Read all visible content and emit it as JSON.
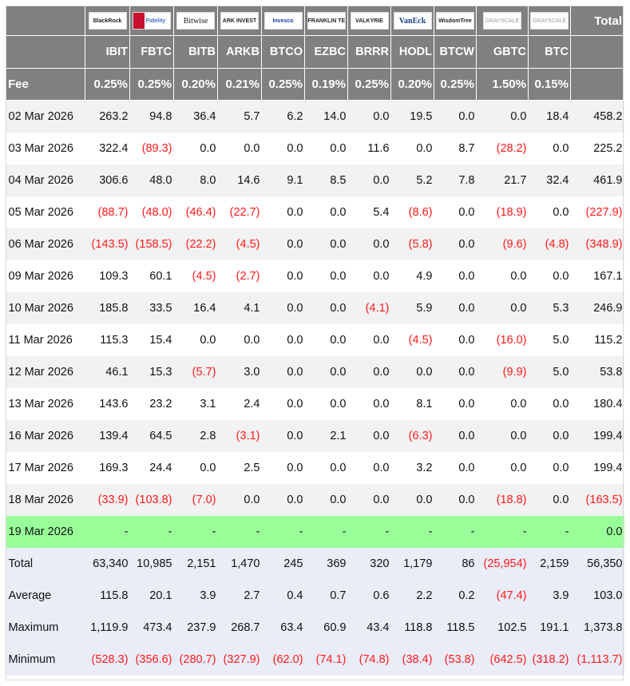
{
  "header": {
    "total_label": "Total",
    "fee_label": "Fee",
    "funds": [
      {
        "issuer": "BlackRock",
        "ticker": "IBIT",
        "fee": "0.25%"
      },
      {
        "issuer": "Fidelity",
        "ticker": "FBTC",
        "fee": "0.25%"
      },
      {
        "issuer": "Bitwise",
        "ticker": "BITB",
        "fee": "0.20%"
      },
      {
        "issuer": "ARK INVEST",
        "ticker": "ARKB",
        "fee": "0.21%"
      },
      {
        "issuer": "Invesco",
        "ticker": "BTCO",
        "fee": "0.25%"
      },
      {
        "issuer": "FRANKLIN TEMPLETON",
        "ticker": "EZBC",
        "fee": "0.19%"
      },
      {
        "issuer": "VALKYRIE",
        "ticker": "BRRR",
        "fee": "0.25%"
      },
      {
        "issuer": "VanEck",
        "ticker": "HODL",
        "fee": "0.20%"
      },
      {
        "issuer": "WisdomTree",
        "ticker": "BTCW",
        "fee": "0.25%"
      },
      {
        "issuer": "GRAYSCALE",
        "ticker": "GBTC",
        "fee": "1.50%"
      },
      {
        "issuer": "GRAYSCALE",
        "ticker": "BTC",
        "fee": "0.15%"
      }
    ]
  },
  "rows": [
    {
      "date": "02 Mar 2026",
      "values": [
        "263.2",
        "94.8",
        "36.4",
        "5.7",
        "6.2",
        "14.0",
        "0.0",
        "19.5",
        "0.0",
        "0.0",
        "18.4",
        "458.2"
      ]
    },
    {
      "date": "03 Mar 2026",
      "values": [
        "322.4",
        "(89.3)",
        "0.0",
        "0.0",
        "0.0",
        "0.0",
        "11.6",
        "0.0",
        "8.7",
        "(28.2)",
        "0.0",
        "225.2"
      ]
    },
    {
      "date": "04 Mar 2026",
      "values": [
        "306.6",
        "48.0",
        "8.0",
        "14.6",
        "9.1",
        "8.5",
        "0.0",
        "5.2",
        "7.8",
        "21.7",
        "32.4",
        "461.9"
      ]
    },
    {
      "date": "05 Mar 2026",
      "values": [
        "(88.7)",
        "(48.0)",
        "(46.4)",
        "(22.7)",
        "0.0",
        "0.0",
        "5.4",
        "(8.6)",
        "0.0",
        "(18.9)",
        "0.0",
        "(227.9)"
      ]
    },
    {
      "date": "06 Mar 2026",
      "values": [
        "(143.5)",
        "(158.5)",
        "(22.2)",
        "(4.5)",
        "0.0",
        "0.0",
        "0.0",
        "(5.8)",
        "0.0",
        "(9.6)",
        "(4.8)",
        "(348.9)"
      ]
    },
    {
      "date": "09 Mar 2026",
      "values": [
        "109.3",
        "60.1",
        "(4.5)",
        "(2.7)",
        "0.0",
        "0.0",
        "0.0",
        "4.9",
        "0.0",
        "0.0",
        "0.0",
        "167.1"
      ]
    },
    {
      "date": "10 Mar 2026",
      "values": [
        "185.8",
        "33.5",
        "16.4",
        "4.1",
        "0.0",
        "0.0",
        "(4.1)",
        "5.9",
        "0.0",
        "0.0",
        "5.3",
        "246.9"
      ]
    },
    {
      "date": "11 Mar 2026",
      "values": [
        "115.3",
        "15.4",
        "0.0",
        "0.0",
        "0.0",
        "0.0",
        "0.0",
        "(4.5)",
        "0.0",
        "(16.0)",
        "5.0",
        "115.2"
      ]
    },
    {
      "date": "12 Mar 2026",
      "values": [
        "46.1",
        "15.3",
        "(5.7)",
        "3.0",
        "0.0",
        "0.0",
        "0.0",
        "0.0",
        "0.0",
        "(9.9)",
        "5.0",
        "53.8"
      ]
    },
    {
      "date": "13 Mar 2026",
      "values": [
        "143.6",
        "23.2",
        "3.1",
        "2.4",
        "0.0",
        "0.0",
        "0.0",
        "8.1",
        "0.0",
        "0.0",
        "0.0",
        "180.4"
      ]
    },
    {
      "date": "16 Mar 2026",
      "values": [
        "139.4",
        "64.5",
        "2.8",
        "(3.1)",
        "0.0",
        "2.1",
        "0.0",
        "(6.3)",
        "0.0",
        "0.0",
        "0.0",
        "199.4"
      ]
    },
    {
      "date": "17 Mar 2026",
      "values": [
        "169.3",
        "24.4",
        "0.0",
        "2.5",
        "0.0",
        "0.0",
        "0.0",
        "3.2",
        "0.0",
        "0.0",
        "0.0",
        "199.4"
      ]
    },
    {
      "date": "18 Mar 2026",
      "values": [
        "(33.9)",
        "(103.8)",
        "(7.0)",
        "0.0",
        "0.0",
        "0.0",
        "0.0",
        "0.0",
        "0.0",
        "(18.8)",
        "0.0",
        "(163.5)"
      ]
    },
    {
      "date": "19 Mar 2026",
      "pending": true,
      "values": [
        "-",
        "-",
        "-",
        "-",
        "-",
        "-",
        "-",
        "-",
        "-",
        "-",
        "-",
        "0.0"
      ]
    }
  ],
  "summary": [
    {
      "date": "Total",
      "values": [
        "63,340",
        "10,985",
        "2,151",
        "1,470",
        "245",
        "369",
        "320",
        "1,179",
        "86",
        "(25,954)",
        "2,159",
        "56,350"
      ]
    },
    {
      "date": "Average",
      "values": [
        "115.8",
        "20.1",
        "3.9",
        "2.7",
        "0.4",
        "0.7",
        "0.6",
        "2.2",
        "0.2",
        "(47.4)",
        "3.9",
        "103.0"
      ]
    },
    {
      "date": "Maximum",
      "values": [
        "1,119.9",
        "473.4",
        "237.9",
        "268.7",
        "63.4",
        "60.9",
        "43.4",
        "118.8",
        "118.5",
        "102.5",
        "191.1",
        "1,373.8"
      ]
    },
    {
      "date": "Minimum",
      "values": [
        "(528.3)",
        "(356.6)",
        "(280.7)",
        "(327.9)",
        "(62.0)",
        "(74.1)",
        "(74.8)",
        "(38.4)",
        "(53.8)",
        "(642.5)",
        "(318.2)",
        "(1,113.7)"
      ]
    }
  ],
  "colors": {
    "header_bg": "#808080",
    "negative": "#ff1a1a",
    "pending_row": "#99ff99",
    "summary_bg": "#eaedf7"
  }
}
